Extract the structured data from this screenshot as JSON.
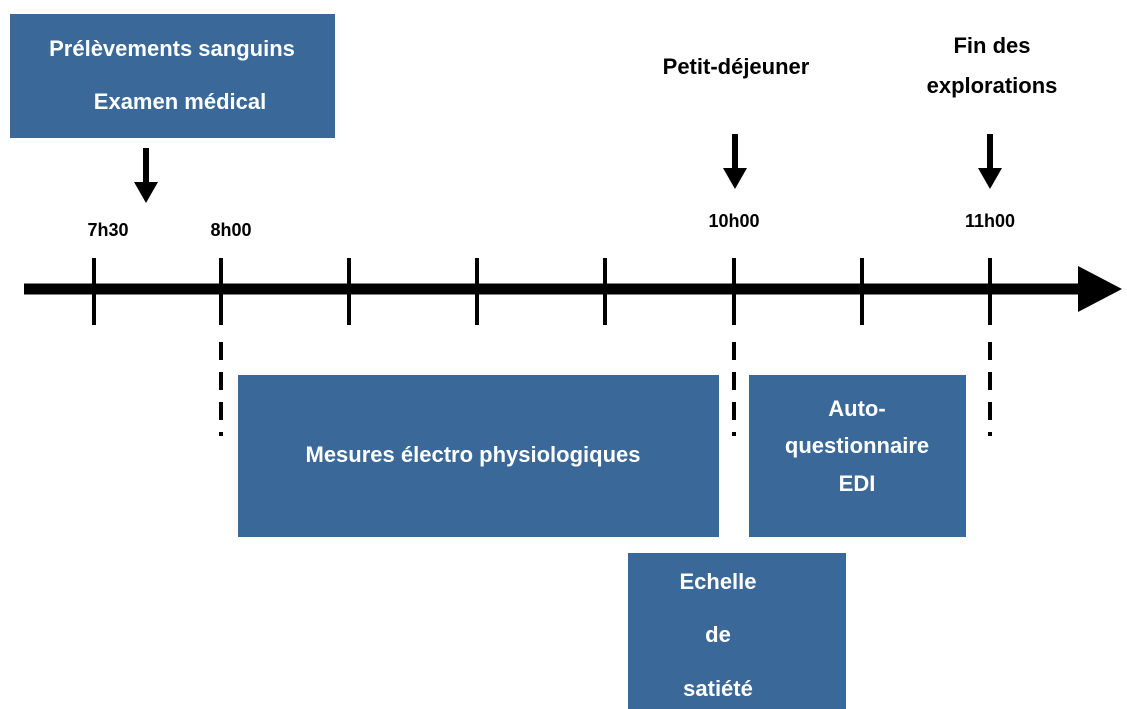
{
  "boxes": [
    {
      "lines": [
        "Prélèvements sanguins",
        "Examen médical"
      ]
    },
    {
      "lines": [
        "Mesures électro physiologiques"
      ]
    },
    {
      "lines": [
        "Auto-",
        "questionnaire",
        "EDI"
      ]
    },
    {
      "lines": [
        "Echelle",
        "de",
        "satiété"
      ]
    }
  ],
  "times": [
    "7h30",
    "8h00",
    "10h00",
    "11h00"
  ],
  "events": [
    {
      "lines": [
        "Petit-déjeuner"
      ]
    },
    {
      "lines": [
        "Fin des",
        "explorations"
      ]
    }
  ]
}
